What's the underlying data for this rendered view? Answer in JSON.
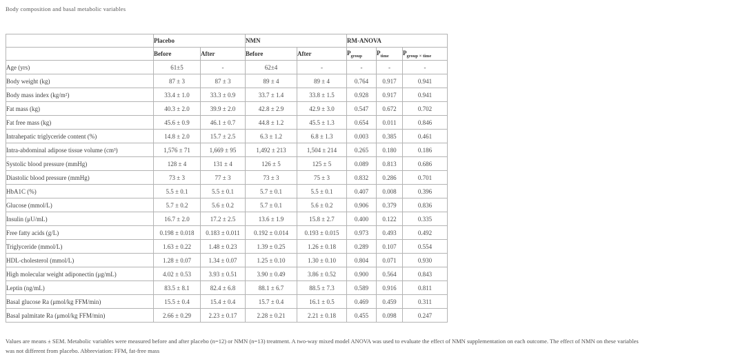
{
  "title": "Body composition and basal metabolic variables",
  "colors": {
    "border": "#b3b3b3",
    "header_text": "#333333",
    "body_text": "#4a4a4a",
    "muted_text": "#595959",
    "background": "#ffffff"
  },
  "table": {
    "groups": [
      "Placebo",
      "NMN",
      "RM-ANOVA"
    ],
    "sub_headers": [
      "Before",
      "After",
      "Before",
      "After"
    ],
    "p_headers": [
      {
        "base": "P",
        "sub": "group"
      },
      {
        "base": "P",
        "sub": "time"
      },
      {
        "base": "P",
        "sub": "group × time"
      }
    ],
    "rows": [
      {
        "label": "Age (yrs)",
        "values": [
          "61±5",
          "-",
          "62±4",
          "-",
          "-",
          "-",
          "-"
        ]
      },
      {
        "label": "Body weight (kg)",
        "values": [
          "87 ± 3",
          "87 ± 3",
          "89 ± 4",
          "89 ± 4",
          "0.764",
          "0.917",
          "0.941"
        ]
      },
      {
        "label": "Body mass index (kg/m²)",
        "values": [
          "33.4 ± 1.0",
          "33.3 ± 0.9",
          "33.7 ± 1.4",
          "33.8 ± 1.5",
          "0.928",
          "0.917",
          "0.941"
        ]
      },
      {
        "label": "Fat mass (kg)",
        "values": [
          "40.3 ± 2.0",
          "39.9 ± 2.0",
          "42.8 ± 2.9",
          "42.9 ± 3.0",
          "0.547",
          "0.672",
          "0.702"
        ]
      },
      {
        "label": "Fat free mass (kg)",
        "values": [
          "45.6 ± 0.9",
          "46.1 ± 0.7",
          "44.8 ± 1.2",
          "45.5 ± 1.3",
          "0.654",
          "0.011",
          "0.846"
        ]
      },
      {
        "label": "Intrahepatic triglyceride content (%)",
        "values": [
          "14.8 ± 2.0",
          "15.7 ± 2.5",
          "6.3 ± 1.2",
          "6.8 ± 1.3",
          "0.003",
          "0.385",
          "0.461"
        ]
      },
      {
        "label": "Intra-abdominal adipose tissue volume (cm³)",
        "values": [
          "1,576 ± 71",
          "1,669 ± 95",
          "1,492 ± 213",
          "1,504 ± 214",
          "0.265",
          "0.180",
          "0.186"
        ]
      },
      {
        "label": "Systolic blood pressure (mmHg)",
        "values": [
          "128 ± 4",
          "131 ± 4",
          "126 ± 5",
          "125 ± 5",
          "0.089",
          "0.813",
          "0.686"
        ]
      },
      {
        "label": "Diastolic blood pressure (mmHg)",
        "values": [
          "73 ± 3",
          "77 ± 3",
          "73 ± 3",
          "75 ± 3",
          "0.832",
          "0.286",
          "0.701"
        ]
      },
      {
        "label": "HbA1C (%)",
        "values": [
          "5.5 ± 0.1",
          "5.5 ± 0.1",
          "5.7 ± 0.1",
          "5.5 ± 0.1",
          "0.407",
          "0.008",
          "0.396"
        ]
      },
      {
        "label": "Glucose (mmol/L)",
        "values": [
          "5.7 ± 0.2",
          "5.6 ± 0.2",
          "5.7 ± 0.1",
          "5.6 ± 0.2",
          "0.906",
          "0.379",
          "0.836"
        ]
      },
      {
        "label": "Insulin (μU/mL)",
        "values": [
          "16.7 ± 2.0",
          "17.2 ± 2.5",
          "13.6 ± 1.9",
          "15.8 ± 2.7",
          "0.400",
          "0.122",
          "0.335"
        ]
      },
      {
        "label": "Free fatty acids (g/L)",
        "values": [
          "0.198 ± 0.018",
          "0.183 ± 0.011",
          "0.192 ± 0.014",
          "0.193 ± 0.015",
          "0.973",
          "0.493",
          "0.492"
        ]
      },
      {
        "label": "Triglyceride (mmol/L)",
        "values": [
          "1.63 ± 0.22",
          "1.48 ± 0.23",
          "1.39 ± 0.25",
          "1.26 ± 0.18",
          "0.289",
          "0.107",
          "0.554"
        ]
      },
      {
        "label": "HDL-cholesterol (mmol/L)",
        "values": [
          "1.28 ± 0.07",
          "1.34 ± 0.07",
          "1.25 ± 0.10",
          "1.30 ± 0.10",
          "0.804",
          "0.071",
          "0.930"
        ]
      },
      {
        "label": "High molecular weight adiponectin (μg/mL)",
        "values": [
          "4.02 ± 0.53",
          "3.93 ± 0.51",
          "3.90 ± 0.49",
          "3.86 ± 0.52",
          "0.900",
          "0.564",
          "0.843"
        ]
      },
      {
        "label": "Leptin (ng/mL)",
        "values": [
          "83.5 ± 8.1",
          "82.4 ± 6.8",
          "88.1 ± 6.7",
          "88.5 ± 7.3",
          "0.589",
          "0.916",
          "0.811"
        ]
      },
      {
        "label": "Basal glucose Ra (μmol/kg FFM/min)",
        "values": [
          "15.5 ± 0.4",
          "15.4 ± 0.4",
          "15.7 ± 0.4",
          "16.1 ± 0.5",
          "0.469",
          "0.459",
          "0.311"
        ]
      },
      {
        "label": "Basal palmitate Ra (μmol/kg FFM/min)",
        "values": [
          "2.66 ± 0.29",
          "2.23 ± 0.17",
          "2.28 ± 0.21",
          "2.21 ± 0.18",
          "0.455",
          "0.098",
          "0.247"
        ]
      }
    ]
  },
  "footnote_lines": [
    "Values are means ± SEM. Metabolic variables were measured before and after placebo (n=12) or NMN (n=13) treatment. A two-way mixed model ANOVA was used to evaluate the effect of NMN supplementation on each outcome. The effect of NMN on these variables",
    "was not different from placebo. Abbreviation: FFM, fat-free mass"
  ]
}
